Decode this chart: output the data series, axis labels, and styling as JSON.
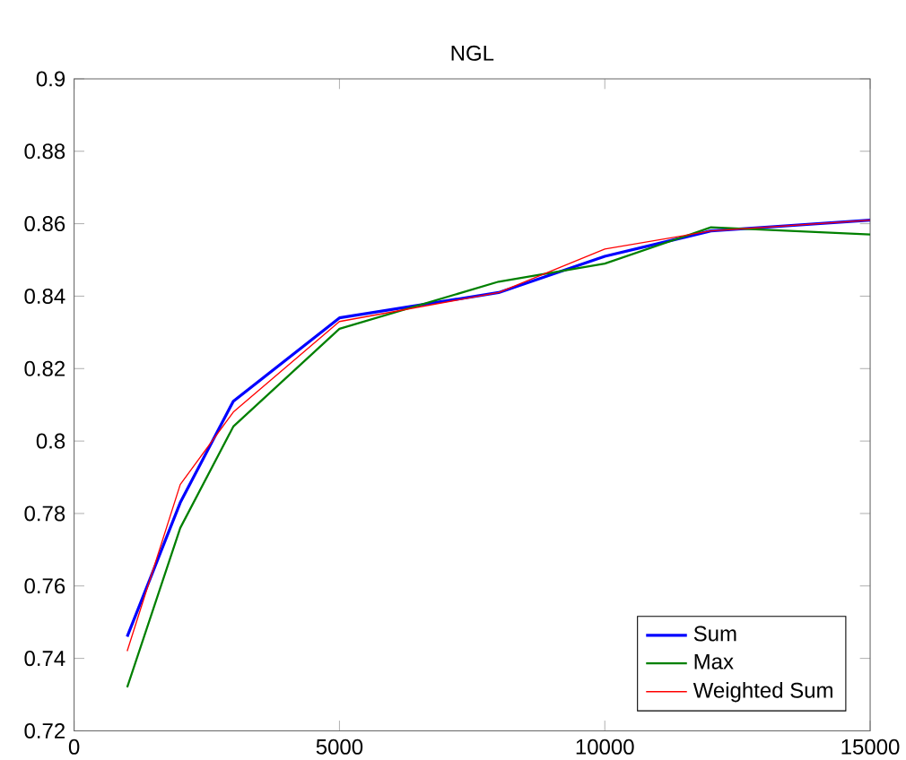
{
  "chart_data": {
    "type": "line",
    "title": "NGL",
    "x": [
      1000,
      2000,
      3000,
      5000,
      8000,
      10000,
      12000,
      15000
    ],
    "series": [
      {
        "name": "Sum",
        "color": "#0000ff",
        "values": [
          0.746,
          0.783,
          0.811,
          0.834,
          0.841,
          0.851,
          0.858,
          0.861
        ]
      },
      {
        "name": "Max",
        "color": "#008000",
        "values": [
          0.732,
          0.776,
          0.804,
          0.831,
          0.844,
          0.849,
          0.859,
          0.857
        ]
      },
      {
        "name": "Weighted Sum",
        "color": "#ff0000",
        "values": [
          0.742,
          0.788,
          0.808,
          0.833,
          0.841,
          0.853,
          0.858,
          0.861
        ]
      }
    ],
    "xlim": [
      0,
      15000
    ],
    "ylim": [
      0.72,
      0.9
    ],
    "xticks": [
      0,
      5000,
      10000,
      15000
    ],
    "yticks": [
      0.72,
      0.74,
      0.76,
      0.78,
      0.8,
      0.82,
      0.84,
      0.86,
      0.88,
      0.9
    ],
    "grid": false,
    "legend": "bottom right",
    "marker": "none",
    "line_style": "solid"
  }
}
